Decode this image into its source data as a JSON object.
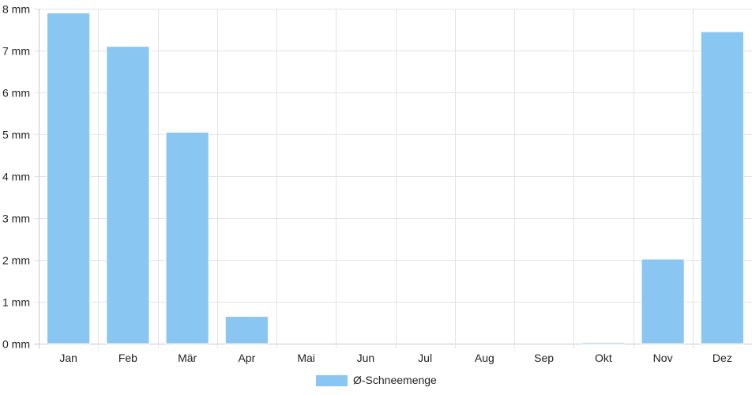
{
  "chart_data": {
    "type": "bar",
    "categories": [
      "Jan",
      "Feb",
      "Mär",
      "Apr",
      "Mai",
      "Jun",
      "Jul",
      "Aug",
      "Sep",
      "Okt",
      "Nov",
      "Dez"
    ],
    "series": [
      {
        "name": "Ø-Schneemenge",
        "values": [
          7.9,
          7.1,
          5.05,
          0.65,
          0,
          0,
          0,
          0,
          0,
          0.03,
          2.02,
          7.45
        ],
        "color": "#89c6f2"
      }
    ],
    "yticks": [
      "0 mm",
      "1 mm",
      "2 mm",
      "3 mm",
      "4 mm",
      "5 mm",
      "6 mm",
      "7 mm",
      "8 mm"
    ],
    "ylim": [
      0,
      8
    ],
    "grid": true,
    "legend_position": "bottom-center",
    "title": "",
    "xlabel": "",
    "ylabel": ""
  }
}
